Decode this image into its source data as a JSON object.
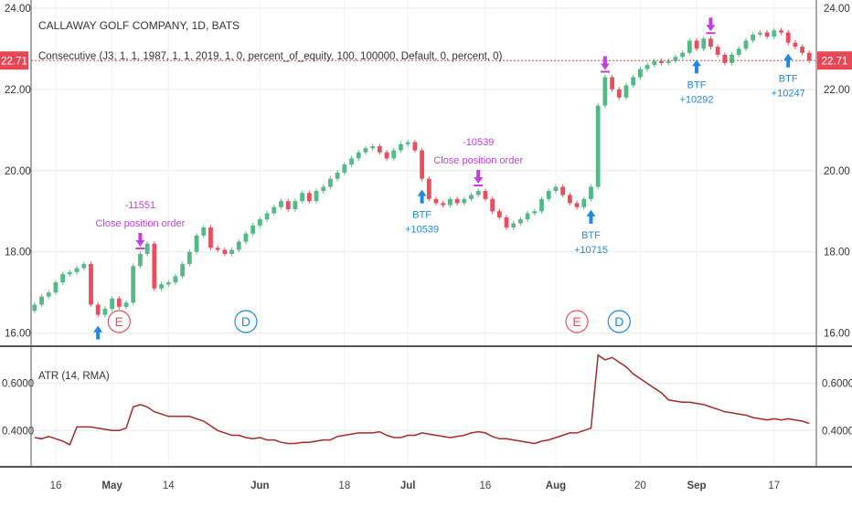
{
  "chart_data": {
    "type": "candlestick",
    "symbol_title": "CALLAWAY GOLF COMPANY, 1D, BATS",
    "strategy_label": "Consecutive (J3, 1, 1, 1987, 1, 1, 2019, 1, 0, percent_of_equity, 100, 100000, Default, 0, percent, 0)",
    "last_price_label": "22.71",
    "last_price": 22.71,
    "price_axis": {
      "ylim": [
        15.7,
        24.2
      ],
      "ticks": [
        16.0,
        18.0,
        20.0,
        22.0,
        24.0
      ],
      "tick_labels": [
        "16.00",
        "18.00",
        "20.00",
        "22.00",
        "24.00"
      ]
    },
    "x_axis": {
      "tick_labels": [
        "16",
        "May",
        "14",
        "Jun",
        "18",
        "Jul",
        "16",
        "Aug",
        "20",
        "Sep",
        "17"
      ],
      "tick_bars": [
        3,
        11,
        19,
        32,
        44,
        53,
        64,
        74,
        86,
        94,
        105
      ],
      "month_ticks": [
        1,
        3,
        5,
        7,
        9
      ]
    },
    "close": [
      16.7,
      16.9,
      17.0,
      17.25,
      17.45,
      17.5,
      17.6,
      17.7,
      16.7,
      16.45,
      16.6,
      16.85,
      16.65,
      16.75,
      17.65,
      17.95,
      18.2,
      17.1,
      17.2,
      17.25,
      17.4,
      17.7,
      18.0,
      18.4,
      18.6,
      18.1,
      18.05,
      17.95,
      18.05,
      18.25,
      18.45,
      18.65,
      18.8,
      18.95,
      19.1,
      19.25,
      19.05,
      19.25,
      19.45,
      19.25,
      19.5,
      19.6,
      19.8,
      19.95,
      20.15,
      20.3,
      20.45,
      20.55,
      20.6,
      20.45,
      20.3,
      20.5,
      20.65,
      20.7,
      20.5,
      19.8,
      19.3,
      19.2,
      19.15,
      19.3,
      19.2,
      19.3,
      19.4,
      19.5,
      19.3,
      19.0,
      18.85,
      18.6,
      18.7,
      18.8,
      18.95,
      19.0,
      19.3,
      19.5,
      19.6,
      19.4,
      19.2,
      19.1,
      19.3,
      19.6,
      21.6,
      22.3,
      22.0,
      21.8,
      22.1,
      22.3,
      22.5,
      22.6,
      22.7,
      22.65,
      22.7,
      22.8,
      22.9,
      23.2,
      23.0,
      23.25,
      23.05,
      22.85,
      22.65,
      22.85,
      23.0,
      23.2,
      23.35,
      23.4,
      23.3,
      23.45,
      23.4,
      23.15,
      23.05,
      22.9,
      22.71
    ],
    "atr": {
      "label": "ATR (14, RMA)",
      "ylim": [
        0.25,
        0.75
      ],
      "ticks": [
        0.4,
        0.6
      ],
      "tick_labels": [
        "0.4000",
        "0.6000"
      ],
      "values": [
        0.37,
        0.365,
        0.375,
        0.365,
        0.355,
        0.34,
        0.415,
        0.415,
        0.415,
        0.41,
        0.405,
        0.4,
        0.4,
        0.41,
        0.5,
        0.51,
        0.5,
        0.48,
        0.47,
        0.46,
        0.46,
        0.46,
        0.46,
        0.45,
        0.44,
        0.42,
        0.4,
        0.39,
        0.38,
        0.38,
        0.37,
        0.365,
        0.37,
        0.36,
        0.36,
        0.35,
        0.345,
        0.345,
        0.35,
        0.35,
        0.355,
        0.36,
        0.36,
        0.375,
        0.38,
        0.385,
        0.39,
        0.39,
        0.39,
        0.395,
        0.38,
        0.37,
        0.37,
        0.38,
        0.38,
        0.39,
        0.385,
        0.38,
        0.375,
        0.37,
        0.375,
        0.38,
        0.39,
        0.395,
        0.39,
        0.375,
        0.365,
        0.365,
        0.36,
        0.355,
        0.35,
        0.345,
        0.355,
        0.36,
        0.37,
        0.38,
        0.39,
        0.39,
        0.4,
        0.41,
        0.72,
        0.7,
        0.71,
        0.69,
        0.67,
        0.64,
        0.62,
        0.6,
        0.58,
        0.56,
        0.53,
        0.525,
        0.52,
        0.52,
        0.515,
        0.51,
        0.5,
        0.49,
        0.48,
        0.475,
        0.47,
        0.465,
        0.455,
        0.45,
        0.445,
        0.45,
        0.445,
        0.45,
        0.445,
        0.44,
        0.43
      ]
    },
    "events": [
      {
        "letter": "E",
        "bar": 12
      },
      {
        "letter": "D",
        "bar": 30
      },
      {
        "letter": "E",
        "bar": 77
      },
      {
        "letter": "D",
        "bar": 83
      }
    ],
    "buy_signals": [
      {
        "bar": 9,
        "label": "",
        "amount": ""
      },
      {
        "bar": 55,
        "label": "BTF",
        "amount": "+10539"
      },
      {
        "bar": 79,
        "label": "BTF",
        "amount": "+10715"
      },
      {
        "bar": 94,
        "label": "BTF",
        "amount": "+10292"
      },
      {
        "bar": 107,
        "label": "BTF",
        "amount": "+10247"
      }
    ],
    "close_orders": [
      {
        "bar": 15,
        "amount": "-11551",
        "label": "Close position order"
      },
      {
        "bar": 63,
        "amount": "-10539",
        "label": "Close position order"
      },
      {
        "bar": 81,
        "amount": "",
        "label": ""
      },
      {
        "bar": 96,
        "amount": "",
        "label": ""
      }
    ],
    "colors": {
      "up": "#53b987",
      "down": "#eb4d5c",
      "price_line": "#e84855",
      "atr_line": "#a52a2a",
      "signal_blue": "#1e88e5",
      "signal_magenta": "#c13fdb"
    }
  }
}
